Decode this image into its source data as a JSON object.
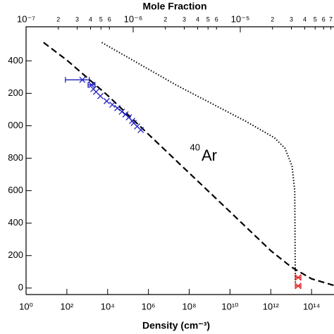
{
  "chart_data": {
    "type": "line",
    "x2label": "Mole Fraction",
    "xlabel": "Density (cm⁻³)",
    "annotation_sup": "40",
    "annotation": "Ar",
    "xscale": "log",
    "xlim": [
      1,
      1260000000000000.0
    ],
    "xticks": [
      {
        "value": 1,
        "label": "10⁰"
      },
      {
        "value": 100,
        "label": "10²"
      },
      {
        "value": 10000,
        "label": "10⁴"
      },
      {
        "value": 1000000,
        "label": "10⁶"
      },
      {
        "value": 100000000,
        "label": "10⁸"
      },
      {
        "value": 10000000000,
        "label": "10¹⁰"
      },
      {
        "value": 1000000000000,
        "label": "10¹²"
      },
      {
        "value": 100000000000000,
        "label": "10¹⁴"
      }
    ],
    "x2scale": "log",
    "x2lim": [
      1e-07,
      7.5e-05
    ],
    "x2ticks": [
      {
        "value": 1e-07,
        "label": "10⁻⁷"
      },
      {
        "value": 2e-07,
        "label": "2"
      },
      {
        "value": 3e-07,
        "label": "3"
      },
      {
        "value": 4e-07,
        "label": "4"
      },
      {
        "value": 5e-07,
        "label": "5"
      },
      {
        "value": 6e-07,
        "label": "6"
      },
      {
        "value": 1e-06,
        "label": "10⁻⁶"
      },
      {
        "value": 2e-06,
        "label": "2"
      },
      {
        "value": 3e-06,
        "label": "3"
      },
      {
        "value": 4e-06,
        "label": "4"
      },
      {
        "value": 5e-06,
        "label": "5"
      },
      {
        "value": 6e-06,
        "label": "6"
      },
      {
        "value": 1e-05,
        "label": "10⁻⁵"
      },
      {
        "value": 2e-05,
        "label": "2"
      },
      {
        "value": 3e-05,
        "label": "3"
      },
      {
        "value": 4e-05,
        "label": "4"
      },
      {
        "value": 5e-05,
        "label": "5"
      },
      {
        "value": 6e-05,
        "label": "6"
      },
      {
        "value": 7e-05,
        "label": "7"
      }
    ],
    "ylim": [
      -40,
      1610
    ],
    "yticks": [
      0,
      {
        "value": 200,
        "label": "200"
      },
      {
        "value": 400,
        "label": "400"
      },
      {
        "value": 600,
        "label": "600"
      },
      {
        "value": 800,
        "label": "800"
      },
      {
        "value": 1000,
        "label": "000"
      },
      {
        "value": 1200,
        "label": "200"
      },
      {
        "value": 1400,
        "label": "400"
      }
    ],
    "lines": [
      {
        "style": "dashed",
        "color": "#000000",
        "x": [
          7.2,
          100,
          10000,
          1000000,
          100000000,
          10000000000,
          1000000000000,
          10000000000000,
          100000000000000,
          1200000000000000
        ],
        "y": [
          1513,
          1404,
          1187,
          948,
          709,
          470,
          230,
          130,
          57,
          17
        ]
      },
      {
        "style": "dotted",
        "color": "#000000",
        "x": [
          5200,
          22000000,
          63000000000,
          1500000000000,
          5000000000000,
          11000000000000,
          15000000000000,
          16000000000000
        ],
        "y": [
          1513,
          1252,
          1026,
          926,
          861,
          752,
          600,
          35
        ]
      }
    ],
    "points": [
      {
        "color": "#2020c0",
        "x": [
          575,
          1600,
          2000,
          2700,
          4400,
          9000,
          17000,
          30000,
          50000,
          75000,
          110000,
          160000,
          190000,
          280000,
          420000
        ],
        "y": [
          1283,
          1252,
          1226,
          1209,
          1183,
          1152,
          1130,
          1109,
          1087,
          1070,
          1052,
          1030,
          1017,
          996,
          974
        ],
        "x_low": [
          85,
          1100,
          null,
          null,
          null,
          null,
          null,
          null,
          null,
          null,
          null,
          null,
          null,
          null,
          null
        ],
        "x_high": [
          1260,
          2400,
          null,
          null,
          null,
          null,
          null,
          null,
          null,
          null,
          null,
          null,
          null,
          null,
          null
        ]
      },
      {
        "color": "#e02020",
        "x": [
          22000000000000,
          22000000000000
        ],
        "y": [
          65,
          13
        ],
        "x_low": [
          16000000000000,
          16000000000000
        ],
        "x_high": [
          30000000000000,
          30000000000000
        ]
      }
    ]
  }
}
